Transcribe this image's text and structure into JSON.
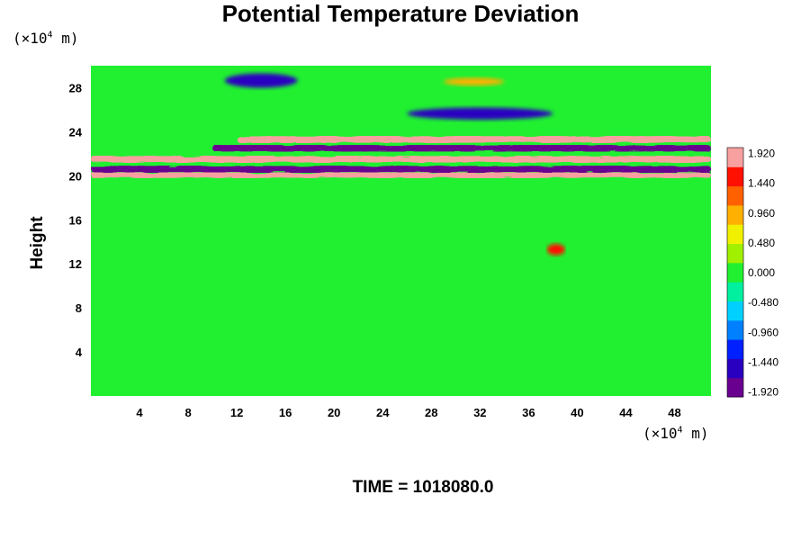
{
  "chart_data": {
    "type": "heatmap",
    "title": "Potential Temperature Deviation",
    "ylabel": "Height",
    "x_unit": {
      "prefix": "(×10",
      "exp": "4",
      "suffix": " m)"
    },
    "y_unit": {
      "prefix": "(×10",
      "exp": "4",
      "suffix": " m)"
    },
    "xlim": [
      0,
      51
    ],
    "ylim": [
      0,
      30
    ],
    "x_ticks": [
      4,
      8,
      12,
      16,
      20,
      24,
      28,
      32,
      36,
      40,
      44,
      48
    ],
    "y_ticks": [
      4,
      8,
      12,
      16,
      20,
      24,
      28
    ],
    "colorbar": {
      "ticks": [
        "1.920",
        "1.440",
        "0.960",
        "0.480",
        "0.000",
        "-0.480",
        "-0.960",
        "-1.440",
        "-1.920"
      ],
      "range": [
        -1.92,
        1.92
      ],
      "colors": [
        "#6a0090",
        "#2a00c0",
        "#0020ff",
        "#0080ff",
        "#00d0ff",
        "#00f0a0",
        "#20f030",
        "#a0f000",
        "#f0f000",
        "#ffb000",
        "#ff6000",
        "#ff1000",
        "#f8a0a0"
      ]
    },
    "features": [
      {
        "region": "background",
        "x": [
          0,
          51
        ],
        "y": [
          0,
          30
        ],
        "value": 0.05
      },
      {
        "region": "positive band",
        "x": [
          0,
          51
        ],
        "y": [
          21.2,
          21.8
        ],
        "value": 1.9
      },
      {
        "region": "negative band",
        "x": [
          0,
          51
        ],
        "y": [
          20.3,
          20.9
        ],
        "value": -1.9
      },
      {
        "region": "positive band",
        "x": [
          0,
          51
        ],
        "y": [
          19.8,
          20.3
        ],
        "value": 1.9
      },
      {
        "region": "negative band",
        "x": [
          10,
          51
        ],
        "y": [
          22.2,
          22.8
        ],
        "value": -1.8
      },
      {
        "region": "positive band",
        "x": [
          12,
          51
        ],
        "y": [
          23.0,
          23.6
        ],
        "value": 1.7
      },
      {
        "region": "negative blob",
        "x": [
          11,
          17
        ],
        "y": [
          28.0,
          29.3
        ],
        "value": -1.6
      },
      {
        "region": "positive blob",
        "x": [
          29,
          34
        ],
        "y": [
          28.2,
          28.9
        ],
        "value": 0.9
      },
      {
        "region": "negative blob",
        "x": [
          26,
          38
        ],
        "y": [
          25.1,
          26.2
        ],
        "value": -1.5
      },
      {
        "region": "positive anomaly",
        "x": [
          37.5,
          39
        ],
        "y": [
          12.8,
          13.8
        ],
        "value": 1.5
      }
    ]
  },
  "time_label": "TIME = 1018080.0"
}
